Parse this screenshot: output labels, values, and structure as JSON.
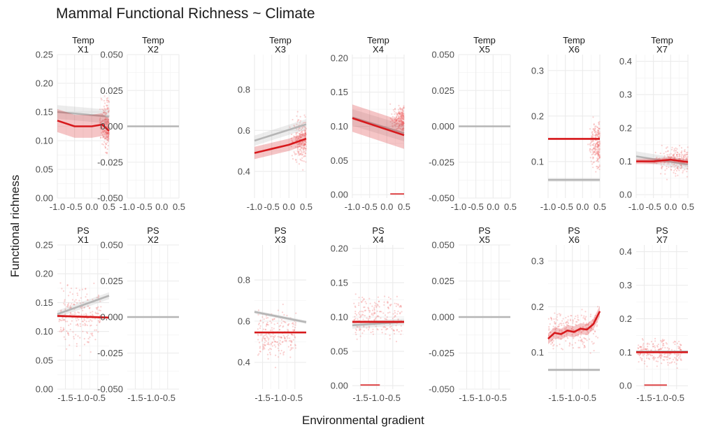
{
  "title": "Mammal Functional Richness ~ Climate",
  "xlabel": "Environmental gradient",
  "ylabel": "Functional richness",
  "colors": {
    "model": "#d7191c",
    "null": "#b5b5b5",
    "points": "#f07a7a",
    "grid": "#ebebeb",
    "text": "#4d4d4d"
  },
  "chart_data": {
    "type": "scatter",
    "title": "Mammal Functional Richness ~ Climate",
    "xlabel": "Environmental gradient",
    "ylabel": "Functional richness",
    "grid": true,
    "legend": "none",
    "layout": "facet grid, rows = predictor (Temp, PS), columns = functional group (X1–X7), free y scales",
    "rows": [
      {
        "name": "Temp",
        "xlim": [
          -1.0,
          0.5
        ],
        "xticks": [
          "-1.0",
          "-0.5",
          "0.0",
          "0.5"
        ],
        "panels": [
          {
            "label": "X1",
            "ylim": [
              0.0,
              0.25
            ],
            "yticks": [
              "0.00",
              "0.05",
              "0.10",
              "0.15",
              "0.20",
              "0.25"
            ],
            "cloud": [
              0.2,
              0.5,
              0.13,
              0.25,
              0.0,
              0.24
            ],
            "null_line": [
              [
                -1.0,
                0.15
              ],
              [
                0.5,
                0.142
              ]
            ],
            "null_band": 0.012,
            "model_line": [
              [
                -1.0,
                0.135
              ],
              [
                -0.5,
                0.125
              ],
              [
                0.0,
                0.125
              ],
              [
                0.3,
                0.128
              ],
              [
                0.5,
                0.117
              ]
            ],
            "model_band": 0.02
          },
          {
            "label": "X2",
            "ylim": [
              -0.05,
              0.05
            ],
            "yticks": [
              "-0.050",
              "-0.025",
              "0.000",
              "0.025",
              "0.050"
            ],
            "cloud": null,
            "null_line": [
              [
                -1.0,
                0.0
              ],
              [
                0.5,
                0.0
              ]
            ],
            "null_band": 0,
            "model_line": null,
            "model_band": 0
          },
          {
            "label": "X3",
            "ylim": [
              0.27,
              0.97
            ],
            "yticks": [
              "0.4",
              "0.6",
              "0.8"
            ],
            "cloud": [
              0.0,
              0.5,
              0.55,
              0.24,
              0.3,
              0.9
            ],
            "null_line": [
              [
                -1.0,
                0.55
              ],
              [
                0.5,
                0.63
              ]
            ],
            "null_band": 0.025,
            "model_line": [
              [
                -1.0,
                0.49
              ],
              [
                -0.5,
                0.51
              ],
              [
                0.0,
                0.53
              ],
              [
                0.5,
                0.56
              ]
            ],
            "model_band": 0.03
          },
          {
            "label": "X4",
            "ylim": [
              -0.005,
              0.205
            ],
            "yticks": [
              "0.00",
              "0.05",
              "0.10",
              "0.15",
              "0.20"
            ],
            "cloud": [
              0.05,
              0.5,
              0.11,
              0.12,
              0.0,
              0.2
            ],
            "null_line": [
              [
                -1.0,
                0.113
              ],
              [
                0.5,
                0.09
              ]
            ],
            "null_band": 0.012,
            "model_line": [
              [
                -1.0,
                0.112
              ],
              [
                0.5,
                0.087
              ]
            ],
            "model_band": 0.02,
            "zero_segment": [
              [
                0.1,
                0.0
              ],
              [
                0.5,
                0.0
              ]
            ]
          },
          {
            "label": "X5",
            "ylim": [
              -0.05,
              0.05
            ],
            "yticks": [
              "-0.050",
              "-0.025",
              "0.000",
              "0.025",
              "0.050"
            ],
            "cloud": null,
            "null_line": [
              [
                -1.0,
                0.0
              ],
              [
                0.5,
                0.0
              ]
            ],
            "null_band": 0,
            "model_line": null,
            "model_band": 0
          },
          {
            "label": "X6",
            "ylim": [
              0.02,
              0.335
            ],
            "yticks": [
              "0.1",
              "0.2",
              "0.3"
            ],
            "cloud": [
              0.15,
              0.5,
              0.14,
              0.24,
              0.03,
              0.33
            ],
            "null_line": [
              [
                -1.0,
                0.06
              ],
              [
                0.5,
                0.06
              ]
            ],
            "null_band": 0.004,
            "model_line": [
              [
                -1.0,
                0.15
              ],
              [
                0.5,
                0.15
              ]
            ],
            "model_band": 0.002
          },
          {
            "label": "X7",
            "ylim": [
              -0.01,
              0.42
            ],
            "yticks": [
              "0.0",
              "0.1",
              "0.2",
              "0.3",
              "0.4"
            ],
            "cloud": [
              -0.6,
              0.5,
              0.1,
              0.14,
              0.0,
              0.25
            ],
            "null_line": [
              [
                -1.0,
                0.115
              ],
              [
                0.5,
                0.09
              ]
            ],
            "null_band": 0.015,
            "model_line": [
              [
                -1.0,
                0.1
              ],
              [
                -0.5,
                0.1
              ],
              [
                0.0,
                0.105
              ],
              [
                0.5,
                0.098
              ]
            ],
            "model_band": 0.008
          }
        ]
      },
      {
        "name": "PS",
        "xlim": [
          -1.75,
          -0.15
        ],
        "xticks": [
          "-1.5",
          "-1.0",
          "-0.5"
        ],
        "panels": [
          {
            "label": "X1",
            "ylim": [
              0.0,
              0.25
            ],
            "yticks": [
              "0.00",
              "0.05",
              "0.10",
              "0.15",
              "0.20",
              "0.25"
            ],
            "cloud": [
              -1.7,
              -0.4,
              0.125,
              0.3,
              0.0,
              0.23
            ],
            "null_line": [
              [
                -1.75,
                0.13
              ],
              [
                -0.15,
                0.162
              ]
            ],
            "null_band": 0.006,
            "model_line": [
              [
                -1.75,
                0.127
              ],
              [
                -0.15,
                0.124
              ]
            ],
            "model_band": 0.002
          },
          {
            "label": "X2",
            "ylim": [
              -0.05,
              0.05
            ],
            "yticks": [
              "-0.050",
              "-0.025",
              "0.000",
              "0.025",
              "0.050"
            ],
            "cloud": null,
            "null_line": [
              [
                -1.75,
                0.0
              ],
              [
                -0.15,
                0.0
              ]
            ],
            "null_band": 0,
            "model_line": null,
            "model_band": 0
          },
          {
            "label": "X3",
            "ylim": [
              0.27,
              0.97
            ],
            "yticks": [
              "0.4",
              "0.6",
              "0.8"
            ],
            "cloud": [
              -1.65,
              -0.45,
              0.53,
              0.26,
              0.3,
              0.92
            ],
            "null_line": [
              [
                -1.75,
                0.645
              ],
              [
                -0.15,
                0.595
              ]
            ],
            "null_band": 0.008,
            "model_line": [
              [
                -1.75,
                0.545
              ],
              [
                -0.15,
                0.545
              ]
            ],
            "model_band": 0.003
          },
          {
            "label": "X4",
            "ylim": [
              -0.005,
              0.205
            ],
            "yticks": [
              "0.00",
              "0.05",
              "0.10",
              "0.15",
              "0.20"
            ],
            "cloud": [
              -1.7,
              -0.2,
              0.1,
              0.22,
              0.0,
              0.2
            ],
            "null_line": [
              [
                -1.75,
                0.088
              ],
              [
                -0.15,
                0.093
              ]
            ],
            "null_band": 0.005,
            "model_line": [
              [
                -1.75,
                0.093
              ],
              [
                -0.15,
                0.093
              ]
            ],
            "model_band": 0.002,
            "zero_segment": [
              [
                -1.5,
                0.0
              ],
              [
                -0.9,
                0.0
              ]
            ]
          },
          {
            "label": "X5",
            "ylim": [
              -0.05,
              0.05
            ],
            "yticks": [
              "-0.050",
              "-0.025",
              "0.000",
              "0.025",
              "0.050"
            ],
            "cloud": null,
            "null_line": [
              [
                -1.75,
                0.0
              ],
              [
                -0.15,
                0.0
              ]
            ],
            "null_band": 0,
            "model_line": null,
            "model_band": 0
          },
          {
            "label": "X6",
            "ylim": [
              0.02,
              0.335
            ],
            "yticks": [
              "0.1",
              "0.2",
              "0.3"
            ],
            "cloud": [
              -1.75,
              -0.2,
              0.15,
              0.2,
              0.04,
              0.28
            ],
            "null_line": [
              [
                -1.75,
                0.062
              ],
              [
                -0.15,
                0.062
              ]
            ],
            "null_band": 0.003,
            "model_line": [
              [
                -1.75,
                0.13
              ],
              [
                -1.55,
                0.143
              ],
              [
                -1.35,
                0.14
              ],
              [
                -1.15,
                0.148
              ],
              [
                -0.95,
                0.145
              ],
              [
                -0.75,
                0.152
              ],
              [
                -0.55,
                0.15
              ],
              [
                -0.35,
                0.162
              ],
              [
                -0.15,
                0.19
              ]
            ],
            "model_band": 0.012
          },
          {
            "label": "X7",
            "ylim": [
              -0.01,
              0.42
            ],
            "yticks": [
              "0.0",
              "0.1",
              "0.2",
              "0.3",
              "0.4"
            ],
            "cloud": [
              -1.7,
              -0.35,
              0.1,
              0.12,
              0.0,
              0.26
            ],
            "null_line": [
              [
                -1.75,
                0.102
              ],
              [
                -0.15,
                0.102
              ]
            ],
            "null_band": 0.003,
            "model_line": [
              [
                -1.75,
                0.1
              ],
              [
                -0.15,
                0.1
              ]
            ],
            "model_band": 0.002,
            "zero_segment": [
              [
                -1.5,
                0.0
              ],
              [
                -0.8,
                0.0
              ]
            ]
          }
        ]
      }
    ]
  }
}
